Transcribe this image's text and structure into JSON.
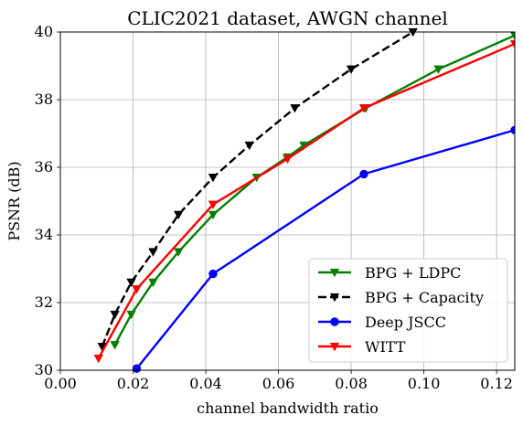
{
  "chart_data": {
    "type": "line",
    "title": "CLIC2021 dataset, AWGN channel",
    "xlabel": "channel bandwidth ratio",
    "ylabel": "PSNR (dB)",
    "xlim": [
      0.0,
      0.125
    ],
    "ylim": [
      30,
      40
    ],
    "xticks": [
      0.0,
      0.02,
      0.04,
      0.06,
      0.08,
      0.1,
      0.12
    ],
    "xtick_labels": [
      "0.00",
      "0.02",
      "0.04",
      "0.06",
      "0.08",
      "0.10",
      "0.12"
    ],
    "yticks": [
      30,
      32,
      34,
      36,
      38,
      40
    ],
    "ytick_labels": [
      "30",
      "32",
      "34",
      "36",
      "38",
      "40"
    ],
    "grid": true,
    "legend_position": "lower-right",
    "series": [
      {
        "name": "BPG + LDPC",
        "color": "#008000",
        "line_style": "solid",
        "marker": "triangle-down",
        "x": [
          0.015,
          0.0195,
          0.0255,
          0.0325,
          0.042,
          0.054,
          0.0625,
          0.067,
          0.084,
          0.104,
          0.125
        ],
        "y": [
          30.75,
          31.65,
          32.6,
          33.5,
          34.6,
          35.7,
          36.3,
          36.65,
          37.75,
          38.9,
          39.9
        ]
      },
      {
        "name": "BPG + Capacity",
        "color": "#000000",
        "line_style": "dashed",
        "marker": "triangle-down",
        "x": [
          0.0115,
          0.015,
          0.0195,
          0.0255,
          0.0325,
          0.042,
          0.052,
          0.0645,
          0.08,
          0.097
        ],
        "y": [
          30.7,
          31.65,
          32.6,
          33.5,
          34.6,
          35.7,
          36.65,
          37.75,
          38.9,
          40.0
        ]
      },
      {
        "name": "Deep JSCC",
        "color": "#0000ff",
        "line_style": "solid",
        "marker": "circle",
        "x": [
          0.021,
          0.042,
          0.0835,
          0.125
        ],
        "y": [
          30.05,
          32.85,
          35.8,
          37.1
        ]
      },
      {
        "name": "WITT",
        "color": "#ff0000",
        "line_style": "solid",
        "marker": "triangle-down",
        "x": [
          0.0105,
          0.021,
          0.042,
          0.0625,
          0.0835,
          0.125
        ],
        "y": [
          30.35,
          32.4,
          34.9,
          36.25,
          37.75,
          39.65
        ]
      }
    ]
  }
}
